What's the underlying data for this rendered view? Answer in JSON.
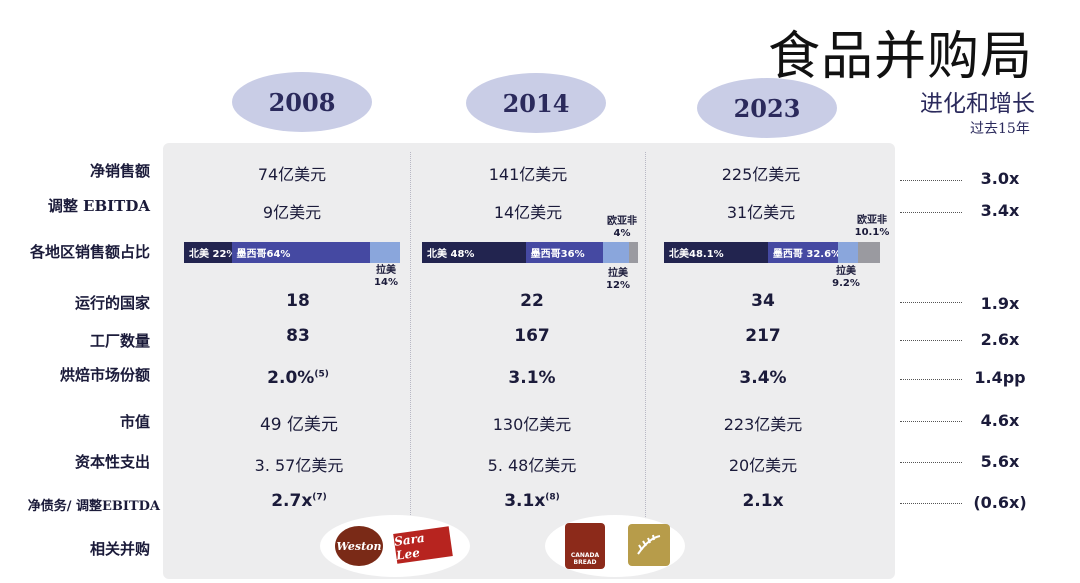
{
  "header": {
    "title": "食品并购局",
    "subtitle": "进化和增长",
    "period": "过去15年"
  },
  "years": [
    "2008",
    "2014",
    "2023"
  ],
  "rows": {
    "net_sales": {
      "label": "净销售额",
      "values": [
        "74亿美元",
        "141亿美元",
        "225亿美元"
      ],
      "multiple": "3.0x"
    },
    "ebitda": {
      "label": "调整 EBITDA",
      "values": [
        "9亿美元",
        "14亿美元",
        "31亿美元"
      ],
      "multiple": "3.4x"
    },
    "regional": {
      "label": "各地区销售额占比"
    },
    "countries": {
      "label": "运行的国家",
      "values": [
        "18",
        "22",
        "34"
      ],
      "multiple": "1.9x"
    },
    "plants": {
      "label": "工厂数量",
      "values": [
        "83",
        "167",
        "217"
      ],
      "multiple": "2.6x"
    },
    "share": {
      "label": "烘焙市场份额",
      "values": [
        "2.0%",
        "3.1%",
        "3.4%"
      ],
      "notes": [
        "(5)",
        "",
        ""
      ],
      "multiple": "1.4pp"
    },
    "market_cap": {
      "label": "市值",
      "values": [
        "49 亿美元",
        "130亿美元",
        "223亿美元"
      ],
      "multiple": "4.6x"
    },
    "capex": {
      "label": "资本性支出",
      "values": [
        "3. 57亿美元",
        "5. 48亿美元",
        "20亿美元"
      ],
      "multiple": "5.6x"
    },
    "leverage": {
      "label": "净债务/ 调整EBITDA",
      "values": [
        "2.7x",
        "3.1x",
        "2.1x"
      ],
      "notes": [
        "(7)",
        "(8)",
        ""
      ],
      "multiple": "(0.6x)"
    },
    "acquisitions": {
      "label": "相关并购"
    }
  },
  "regional_bars": [
    {
      "na": "北美 22%",
      "mx": "墨西哥64%",
      "la_label": "拉美",
      "la_pct": "14%",
      "shares": {
        "na": 22,
        "mx": 64,
        "la": 14,
        "eu": 0
      }
    },
    {
      "na": "北美 48%",
      "mx": "墨西哥36%",
      "la_label": "拉美",
      "la_pct": "12%",
      "eu_label": "欧亚非",
      "eu_pct": "4%",
      "shares": {
        "na": 48,
        "mx": 36,
        "la": 12,
        "eu": 4
      }
    },
    {
      "na": "北美48.1%",
      "mx": "墨西哥 32.6%",
      "la_label": "拉美",
      "la_pct": "9.2%",
      "eu_label": "欧亚非",
      "eu_pct": "10.1%",
      "shares": {
        "na": 48.1,
        "mx": 32.6,
        "la": 9.2,
        "eu": 10.1
      }
    }
  ],
  "logos": {
    "weston": "Weston",
    "saralee": "Sara Lee",
    "canada_bread": "CANADA BREAD"
  },
  "colors": {
    "north_america": "#22244f",
    "mexico": "#4549a2",
    "latam": "#8aa6dc",
    "eaa": "#9a9aa0",
    "year_oval": "#c9cde6",
    "panel": "#ededee"
  }
}
